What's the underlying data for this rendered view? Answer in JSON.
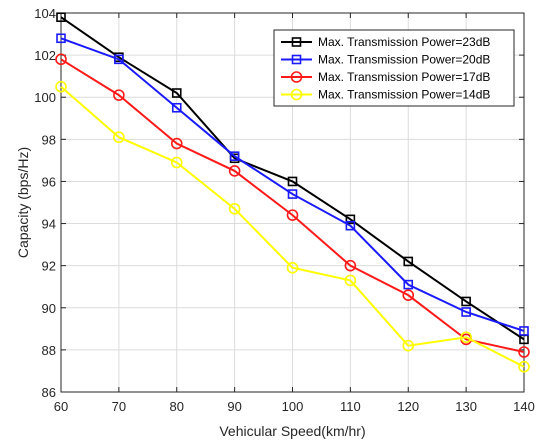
{
  "chart_data": {
    "type": "line",
    "xlabel": "Vehicular Speed(km/hr)",
    "ylabel": "Capacity (bps/Hz)",
    "xlim": [
      60,
      140
    ],
    "ylim": [
      86,
      104
    ],
    "xticks": [
      60,
      70,
      80,
      90,
      100,
      110,
      120,
      130,
      140
    ],
    "yticks": [
      86,
      88,
      90,
      92,
      94,
      96,
      98,
      100,
      102,
      104
    ],
    "grid": true,
    "legend_position": "top-right",
    "x": [
      60,
      70,
      80,
      90,
      100,
      110,
      120,
      130,
      140
    ],
    "series": [
      {
        "name": "Max. Transmission Power=23dB",
        "color": "#000000",
        "marker": "square",
        "values": [
          103.8,
          101.9,
          100.2,
          97.1,
          96.0,
          94.2,
          92.2,
          90.3,
          88.5
        ]
      },
      {
        "name": "Max. Transmission Power=20dB",
        "color": "#1a1aff",
        "marker": "square",
        "values": [
          102.8,
          101.8,
          99.5,
          97.2,
          95.4,
          93.9,
          91.1,
          89.8,
          88.9
        ]
      },
      {
        "name": "Max. Transmission Power=17dB",
        "color": "#ff1a1a",
        "marker": "circle",
        "values": [
          101.8,
          100.1,
          97.8,
          96.5,
          94.4,
          92.0,
          90.6,
          88.5,
          87.9
        ]
      },
      {
        "name": "Max. Transmission Power=14dB",
        "color": "#ffff00",
        "marker": "circle",
        "values": [
          100.5,
          98.1,
          96.9,
          94.7,
          91.9,
          91.3,
          88.2,
          88.6,
          87.2
        ]
      }
    ]
  }
}
